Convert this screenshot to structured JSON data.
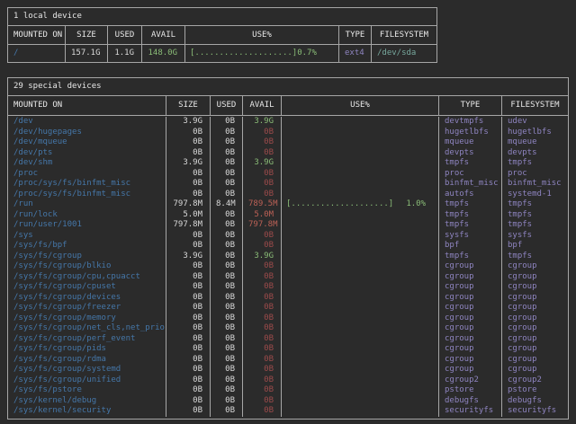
{
  "colors": {
    "background": "#2b2b2b",
    "border": "#a6a6a6",
    "header_text": "#e8e8e8",
    "plain": "#d9d9d9",
    "blue": "#4577a9",
    "green": "#8abc77",
    "red": "#9c4b4b",
    "salmon": "#bc6156",
    "lavender": "#8e84c0",
    "teal": "#77a89d"
  },
  "local_table": {
    "title": "1 local device",
    "headers": [
      "MOUNTED ON",
      "SIZE",
      "USED",
      "AVAIL",
      "USE%",
      "TYPE",
      "FILESYSTEM"
    ],
    "rows": [
      {
        "mount": "/",
        "size": "157.1G",
        "used": "1.1G",
        "avail": "148.0G",
        "avail_color": "green",
        "bar": "[....................]",
        "pct": "0.7%",
        "type": "ext4",
        "fs": "/dev/sda",
        "fs_color": "teal"
      }
    ]
  },
  "special_table": {
    "title": "29 special devices",
    "headers": [
      "MOUNTED ON",
      "SIZE",
      "USED",
      "AVAIL",
      "USE%",
      "TYPE",
      "FILESYSTEM"
    ],
    "rows": [
      {
        "mount": "/dev",
        "size": "3.9G",
        "used": "0B",
        "avail": "3.9G",
        "avail_color": "green",
        "bar": "",
        "pct": "",
        "type": "devtmpfs",
        "fs": "udev",
        "fs_color": "lav"
      },
      {
        "mount": "/dev/hugepages",
        "size": "0B",
        "used": "0B",
        "avail": "0B",
        "avail_color": "red",
        "bar": "",
        "pct": "",
        "type": "hugetlbfs",
        "fs": "hugetlbfs",
        "fs_color": "lav"
      },
      {
        "mount": "/dev/mqueue",
        "size": "0B",
        "used": "0B",
        "avail": "0B",
        "avail_color": "red",
        "bar": "",
        "pct": "",
        "type": "mqueue",
        "fs": "mqueue",
        "fs_color": "lav"
      },
      {
        "mount": "/dev/pts",
        "size": "0B",
        "used": "0B",
        "avail": "0B",
        "avail_color": "red",
        "bar": "",
        "pct": "",
        "type": "devpts",
        "fs": "devpts",
        "fs_color": "lav"
      },
      {
        "mount": "/dev/shm",
        "size": "3.9G",
        "used": "0B",
        "avail": "3.9G",
        "avail_color": "green",
        "bar": "",
        "pct": "",
        "type": "tmpfs",
        "fs": "tmpfs",
        "fs_color": "lav"
      },
      {
        "mount": "/proc",
        "size": "0B",
        "used": "0B",
        "avail": "0B",
        "avail_color": "red",
        "bar": "",
        "pct": "",
        "type": "proc",
        "fs": "proc",
        "fs_color": "lav"
      },
      {
        "mount": "/proc/sys/fs/binfmt_misc",
        "size": "0B",
        "used": "0B",
        "avail": "0B",
        "avail_color": "red",
        "bar": "",
        "pct": "",
        "type": "binfmt_misc",
        "fs": "binfmt_misc",
        "fs_color": "lav"
      },
      {
        "mount": "/proc/sys/fs/binfmt_misc",
        "size": "0B",
        "used": "0B",
        "avail": "0B",
        "avail_color": "red",
        "bar": "",
        "pct": "",
        "type": "autofs",
        "fs": "systemd-1",
        "fs_color": "lav"
      },
      {
        "mount": "/run",
        "size": "797.8M",
        "used": "8.4M",
        "avail": "789.5M",
        "avail_color": "salmon",
        "bar": "[....................]",
        "pct": "1.0%",
        "type": "tmpfs",
        "fs": "tmpfs",
        "fs_color": "lav"
      },
      {
        "mount": "/run/lock",
        "size": "5.0M",
        "used": "0B",
        "avail": "5.0M",
        "avail_color": "salmon",
        "bar": "",
        "pct": "",
        "type": "tmpfs",
        "fs": "tmpfs",
        "fs_color": "lav"
      },
      {
        "mount": "/run/user/1001",
        "size": "797.8M",
        "used": "0B",
        "avail": "797.8M",
        "avail_color": "salmon",
        "bar": "",
        "pct": "",
        "type": "tmpfs",
        "fs": "tmpfs",
        "fs_color": "lav"
      },
      {
        "mount": "/sys",
        "size": "0B",
        "used": "0B",
        "avail": "0B",
        "avail_color": "red",
        "bar": "",
        "pct": "",
        "type": "sysfs",
        "fs": "sysfs",
        "fs_color": "lav"
      },
      {
        "mount": "/sys/fs/bpf",
        "size": "0B",
        "used": "0B",
        "avail": "0B",
        "avail_color": "red",
        "bar": "",
        "pct": "",
        "type": "bpf",
        "fs": "bpf",
        "fs_color": "lav"
      },
      {
        "mount": "/sys/fs/cgroup",
        "size": "3.9G",
        "used": "0B",
        "avail": "3.9G",
        "avail_color": "green",
        "bar": "",
        "pct": "",
        "type": "tmpfs",
        "fs": "tmpfs",
        "fs_color": "lav"
      },
      {
        "mount": "/sys/fs/cgroup/blkio",
        "size": "0B",
        "used": "0B",
        "avail": "0B",
        "avail_color": "red",
        "bar": "",
        "pct": "",
        "type": "cgroup",
        "fs": "cgroup",
        "fs_color": "lav"
      },
      {
        "mount": "/sys/fs/cgroup/cpu,cpuacct",
        "size": "0B",
        "used": "0B",
        "avail": "0B",
        "avail_color": "red",
        "bar": "",
        "pct": "",
        "type": "cgroup",
        "fs": "cgroup",
        "fs_color": "lav"
      },
      {
        "mount": "/sys/fs/cgroup/cpuset",
        "size": "0B",
        "used": "0B",
        "avail": "0B",
        "avail_color": "red",
        "bar": "",
        "pct": "",
        "type": "cgroup",
        "fs": "cgroup",
        "fs_color": "lav"
      },
      {
        "mount": "/sys/fs/cgroup/devices",
        "size": "0B",
        "used": "0B",
        "avail": "0B",
        "avail_color": "red",
        "bar": "",
        "pct": "",
        "type": "cgroup",
        "fs": "cgroup",
        "fs_color": "lav"
      },
      {
        "mount": "/sys/fs/cgroup/freezer",
        "size": "0B",
        "used": "0B",
        "avail": "0B",
        "avail_color": "red",
        "bar": "",
        "pct": "",
        "type": "cgroup",
        "fs": "cgroup",
        "fs_color": "lav"
      },
      {
        "mount": "/sys/fs/cgroup/memory",
        "size": "0B",
        "used": "0B",
        "avail": "0B",
        "avail_color": "red",
        "bar": "",
        "pct": "",
        "type": "cgroup",
        "fs": "cgroup",
        "fs_color": "lav"
      },
      {
        "mount": "/sys/fs/cgroup/net_cls,net_prio",
        "size": "0B",
        "used": "0B",
        "avail": "0B",
        "avail_color": "red",
        "bar": "",
        "pct": "",
        "type": "cgroup",
        "fs": "cgroup",
        "fs_color": "lav"
      },
      {
        "mount": "/sys/fs/cgroup/perf_event",
        "size": "0B",
        "used": "0B",
        "avail": "0B",
        "avail_color": "red",
        "bar": "",
        "pct": "",
        "type": "cgroup",
        "fs": "cgroup",
        "fs_color": "lav"
      },
      {
        "mount": "/sys/fs/cgroup/pids",
        "size": "0B",
        "used": "0B",
        "avail": "0B",
        "avail_color": "red",
        "bar": "",
        "pct": "",
        "type": "cgroup",
        "fs": "cgroup",
        "fs_color": "lav"
      },
      {
        "mount": "/sys/fs/cgroup/rdma",
        "size": "0B",
        "used": "0B",
        "avail": "0B",
        "avail_color": "red",
        "bar": "",
        "pct": "",
        "type": "cgroup",
        "fs": "cgroup",
        "fs_color": "lav"
      },
      {
        "mount": "/sys/fs/cgroup/systemd",
        "size": "0B",
        "used": "0B",
        "avail": "0B",
        "avail_color": "red",
        "bar": "",
        "pct": "",
        "type": "cgroup",
        "fs": "cgroup",
        "fs_color": "lav"
      },
      {
        "mount": "/sys/fs/cgroup/unified",
        "size": "0B",
        "used": "0B",
        "avail": "0B",
        "avail_color": "red",
        "bar": "",
        "pct": "",
        "type": "cgroup2",
        "fs": "cgroup2",
        "fs_color": "lav"
      },
      {
        "mount": "/sys/fs/pstore",
        "size": "0B",
        "used": "0B",
        "avail": "0B",
        "avail_color": "red",
        "bar": "",
        "pct": "",
        "type": "pstore",
        "fs": "pstore",
        "fs_color": "lav"
      },
      {
        "mount": "/sys/kernel/debug",
        "size": "0B",
        "used": "0B",
        "avail": "0B",
        "avail_color": "red",
        "bar": "",
        "pct": "",
        "type": "debugfs",
        "fs": "debugfs",
        "fs_color": "lav"
      },
      {
        "mount": "/sys/kernel/security",
        "size": "0B",
        "used": "0B",
        "avail": "0B",
        "avail_color": "red",
        "bar": "",
        "pct": "",
        "type": "securityfs",
        "fs": "securityfs",
        "fs_color": "lav"
      }
    ]
  }
}
